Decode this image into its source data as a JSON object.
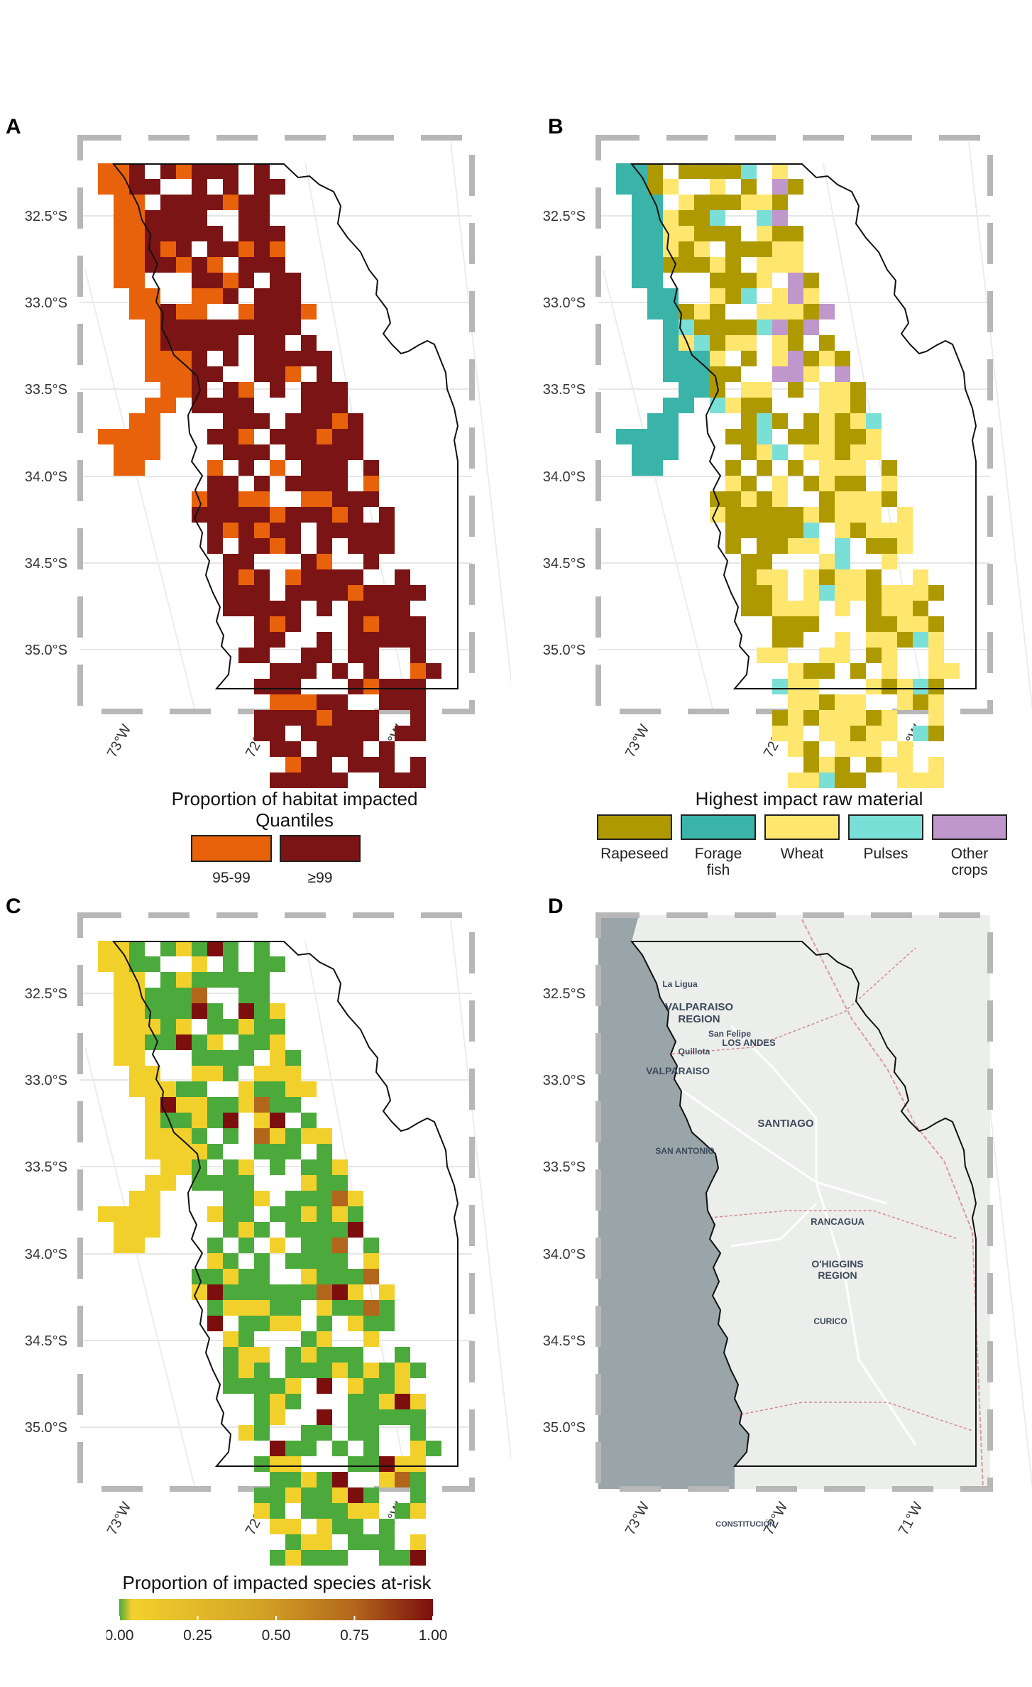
{
  "panels": {
    "A": {
      "letter": "A"
    },
    "B": {
      "letter": "B"
    },
    "C": {
      "letter": "C"
    },
    "D": {
      "letter": "D"
    }
  },
  "axes": {
    "lat_labels": [
      "32.5°S",
      "33.0°S",
      "33.5°S",
      "34.0°S",
      "34.5°S",
      "35.0°S"
    ],
    "lon_labels": [
      "73°W",
      "72°W",
      "71°W"
    ]
  },
  "legend_a": {
    "title_line1": "Proportion of habitat impacted",
    "title_line2": "Quantiles",
    "items": [
      {
        "label": "95-99",
        "color": "#E8620B"
      },
      {
        "label": "≥99",
        "color": "#7B1414"
      }
    ]
  },
  "legend_b": {
    "title": "Highest impact raw material",
    "items": [
      {
        "label_line1": "Rapeseed",
        "label_line2": "",
        "color": "#AE9A00"
      },
      {
        "label_line1": "Forage",
        "label_line2": "fish",
        "color": "#3AB3A9"
      },
      {
        "label_line1": "Wheat",
        "label_line2": "",
        "color": "#FFE66E"
      },
      {
        "label_line1": "Pulses",
        "label_line2": "",
        "color": "#7ADFD7"
      },
      {
        "label_line1": "Other",
        "label_line2": "crops",
        "color": "#BF97CB"
      }
    ]
  },
  "legend_c": {
    "title": "Proportion of impacted species at-risk",
    "ticks": [
      "0.00",
      "0.25",
      "0.50",
      "0.75",
      "1.00"
    ],
    "colors": [
      "#4CAA3C",
      "#F2D02C",
      "#D3A325",
      "#B2661C",
      "#7C0E0E"
    ]
  },
  "map_d": {
    "places": [
      "La Ligua",
      "VALPARAISO",
      "REGION",
      "San Felipe",
      "LOS ANDES",
      "Quillota",
      "VALPARAISO",
      "SANTIAGO",
      "SAN ANTONIO",
      "RANCAGUA",
      "O'HIGGINS",
      "REGION",
      "CURICO",
      "CONSTITUCIÓN"
    ]
  }
}
